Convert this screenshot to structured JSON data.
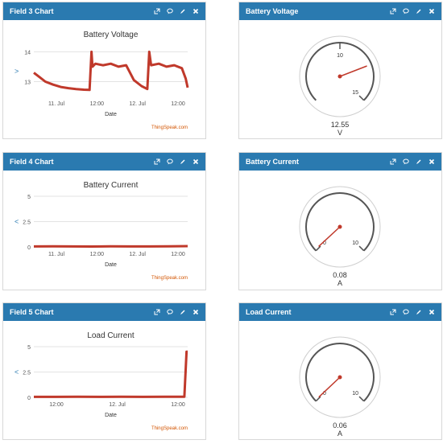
{
  "panels": {
    "field3": {
      "title": "Field 3 Chart"
    },
    "voltage": {
      "title": "Battery Voltage"
    },
    "field4": {
      "title": "Field 4 Chart"
    },
    "current": {
      "title": "Battery Current"
    },
    "field5": {
      "title": "Field 5 Chart"
    },
    "load": {
      "title": "Load Current"
    }
  },
  "header_icons": [
    "external-link-icon",
    "comment-icon",
    "edit-icon",
    "close-icon"
  ],
  "attribution": "ThingSpeak.com",
  "chart_data": [
    {
      "type": "line",
      "title": "Battery Voltage",
      "xlabel": "Date",
      "ylabel": ">",
      "x_tick_labels": [
        "11. Jul",
        "12:00",
        "12. Jul",
        "12:00"
      ],
      "y_tick_labels": [
        "13",
        "14"
      ],
      "ylim": [
        12.5,
        14.2
      ],
      "series": [
        {
          "color": "#c0392b",
          "x": [
            0.0,
            0.3,
            0.6,
            1.0,
            1.4,
            1.8,
            2.2,
            2.6,
            2.9,
            3.0,
            3.05,
            3.2,
            3.6,
            4.0,
            4.4,
            4.8,
            5.2,
            5.6,
            5.9,
            6.0,
            6.1,
            6.5,
            6.9,
            7.3,
            7.7,
            7.9,
            8.0
          ],
          "y": [
            13.3,
            13.15,
            13.0,
            12.9,
            12.82,
            12.78,
            12.75,
            12.73,
            12.72,
            14.0,
            13.5,
            13.6,
            13.55,
            13.6,
            13.5,
            13.55,
            13.05,
            12.85,
            12.75,
            14.0,
            13.55,
            13.6,
            13.5,
            13.55,
            13.45,
            13.1,
            12.8
          ]
        }
      ]
    },
    {
      "type": "gauge",
      "title": "Battery Voltage",
      "value": "12.55",
      "unit": "V",
      "min": 5,
      "max": 15,
      "needle_value": 12.55,
      "tick_labels": [
        "10",
        "15"
      ]
    },
    {
      "type": "line",
      "title": "Battery Current",
      "xlabel": "Date",
      "ylabel": "<",
      "x_tick_labels": [
        "11. Jul",
        "12:00",
        "12. Jul",
        "12:00"
      ],
      "y_tick_labels": [
        "0",
        "2.5",
        "5"
      ],
      "ylim": [
        0,
        5
      ],
      "series": [
        {
          "color": "#c0392b",
          "x": [
            0.0,
            1.0,
            2.0,
            3.0,
            4.0,
            5.0,
            6.0,
            7.0,
            8.0
          ],
          "y": [
            0.05,
            0.06,
            0.05,
            0.04,
            0.06,
            0.05,
            0.05,
            0.06,
            0.08
          ]
        }
      ]
    },
    {
      "type": "gauge",
      "title": "Battery Current",
      "value": "0.08",
      "unit": "A",
      "min": 0,
      "max": 10,
      "needle_value": 0.08,
      "tick_labels": [
        "0",
        "10"
      ]
    },
    {
      "type": "line",
      "title": "Load Current",
      "xlabel": "Date",
      "ylabel": "<",
      "x_tick_labels": [
        "12:00",
        "12. Jul",
        "12:00"
      ],
      "y_tick_labels": [
        "0",
        "2.5",
        "5"
      ],
      "ylim": [
        0,
        5
      ],
      "series": [
        {
          "color": "#c0392b",
          "x": [
            0.0,
            1.0,
            2.0,
            3.0,
            4.0,
            5.0,
            6.0,
            6.9,
            7.0,
            7.05
          ],
          "y": [
            0.05,
            0.05,
            0.06,
            0.05,
            0.06,
            0.05,
            0.06,
            0.06,
            4.5,
            4.5
          ]
        }
      ]
    },
    {
      "type": "gauge",
      "title": "Load Current",
      "value": "0.06",
      "unit": "A",
      "min": 0,
      "max": 10,
      "needle_value": 0.06,
      "tick_labels": [
        "0",
        "10"
      ]
    }
  ]
}
